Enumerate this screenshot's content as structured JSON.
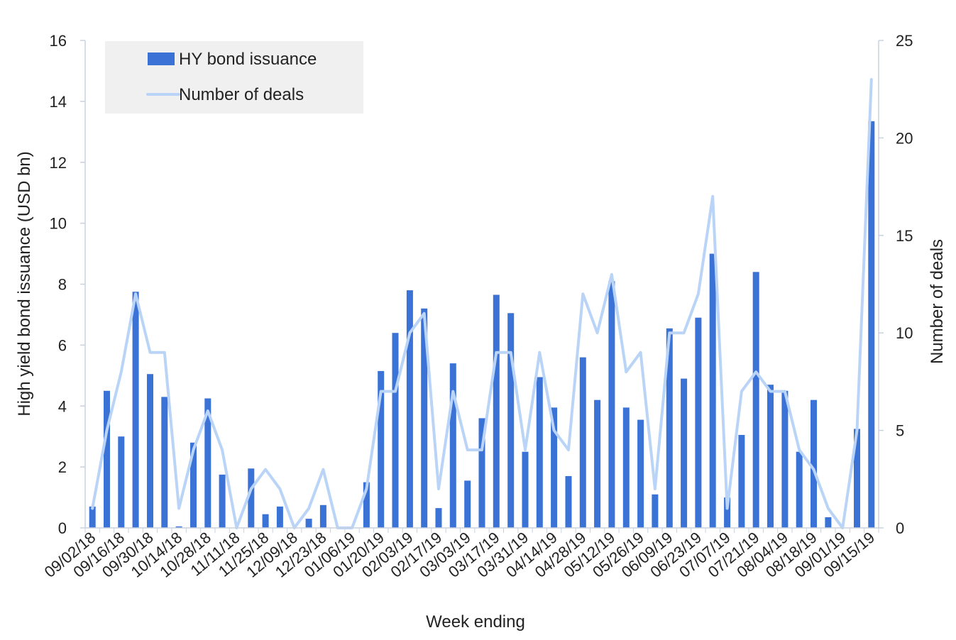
{
  "chart_data": {
    "type": "bar",
    "xlabel": "Week ending",
    "ylabel_left": "High yield bond issuance (USD bn)",
    "ylabel_right": "Number of deals",
    "ylim_left": [
      0,
      16
    ],
    "yticks_left": [
      0,
      2,
      4,
      6,
      8,
      10,
      12,
      14,
      16
    ],
    "ylim_right": [
      0,
      25
    ],
    "yticks_right": [
      0,
      5,
      10,
      15,
      20,
      25
    ],
    "grid": false,
    "legend_position": "top-left",
    "colors": {
      "bars": "#3a72d6",
      "line": "#b9d4f7",
      "legend_bg": "#f0f0f0"
    },
    "categories": [
      "09/02/18",
      "09/09/18",
      "09/16/18",
      "09/23/18",
      "09/30/18",
      "10/07/18",
      "10/14/18",
      "10/21/18",
      "10/28/18",
      "11/04/18",
      "11/11/18",
      "11/18/18",
      "11/25/18",
      "12/02/18",
      "12/09/18",
      "12/16/18",
      "12/23/18",
      "12/30/18",
      "01/06/19",
      "01/13/19",
      "01/20/19",
      "01/27/19",
      "02/03/19",
      "02/10/19",
      "02/17/19",
      "02/24/19",
      "03/03/19",
      "03/10/19",
      "03/17/19",
      "03/24/19",
      "03/31/19",
      "04/07/19",
      "04/14/19",
      "04/21/19",
      "04/28/19",
      "05/05/19",
      "05/12/19",
      "05/19/19",
      "05/26/19",
      "06/02/19",
      "06/09/19",
      "06/16/19",
      "06/23/19",
      "06/30/19",
      "07/07/19",
      "07/14/19",
      "07/21/19",
      "07/28/19",
      "08/04/19",
      "08/11/19",
      "08/18/19",
      "08/25/19",
      "09/01/19",
      "09/08/19",
      "09/15/19"
    ],
    "tick_labels": [
      "09/02/18",
      "09/16/18",
      "09/30/18",
      "10/14/18",
      "10/28/18",
      "11/11/18",
      "11/25/18",
      "12/09/18",
      "12/23/18",
      "01/06/19",
      "01/20/19",
      "02/03/19",
      "02/17/19",
      "03/03/19",
      "03/17/19",
      "03/31/19",
      "04/14/19",
      "04/28/19",
      "05/12/19",
      "05/26/19",
      "06/09/19",
      "06/23/19",
      "07/07/19",
      "07/21/19",
      "08/04/19",
      "08/18/19",
      "09/01/19",
      "09/15/19"
    ],
    "series": [
      {
        "name": "HY bond issuance",
        "type": "bar",
        "axis": "left",
        "values": [
          0.7,
          4.5,
          3.0,
          7.75,
          5.05,
          4.3,
          0.05,
          2.8,
          4.25,
          1.75,
          0.0,
          1.95,
          0.45,
          0.7,
          0.0,
          0.3,
          0.75,
          0.0,
          0.0,
          1.5,
          5.15,
          6.4,
          7.8,
          7.2,
          0.65,
          5.4,
          1.55,
          3.6,
          7.65,
          7.05,
          2.5,
          4.95,
          3.95,
          1.7,
          5.6,
          4.2,
          8.1,
          3.95,
          3.55,
          1.1,
          6.55,
          4.9,
          6.9,
          9.0,
          1.0,
          3.05,
          8.4,
          4.7,
          4.5,
          2.5,
          4.2,
          0.35,
          0.0,
          3.25,
          13.35
        ]
      },
      {
        "name": "Number of deals",
        "type": "line",
        "axis": "right",
        "values": [
          1,
          5,
          8,
          12,
          9,
          9,
          1,
          4,
          6,
          4,
          0,
          2,
          3,
          2,
          0,
          1,
          3,
          0,
          0,
          2,
          7,
          7,
          10,
          11,
          2,
          7,
          4,
          4,
          9,
          9,
          4,
          9,
          5,
          4,
          12,
          10,
          13,
          8,
          9,
          2,
          10,
          10,
          12,
          17,
          1,
          7,
          8,
          7,
          7,
          4,
          3,
          1,
          0,
          5,
          23
        ]
      }
    ]
  }
}
